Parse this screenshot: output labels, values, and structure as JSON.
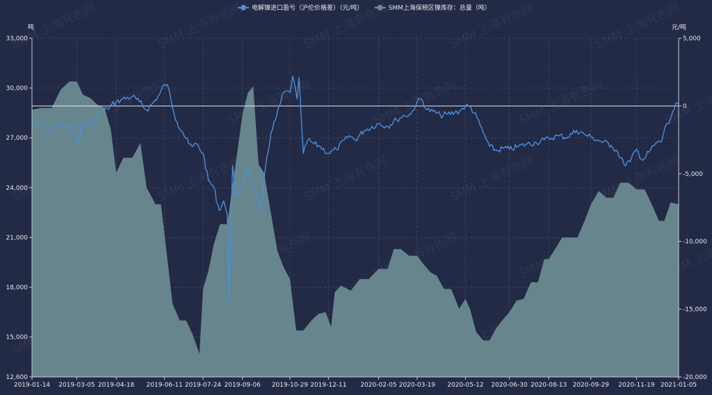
{
  "chart_data": {
    "type": "line+area",
    "legend": {
      "placement": "top-center",
      "items": [
        {
          "name": "电解镍进口盈亏（沪伦价格差）（元/吨）",
          "color": "#4a8fe0",
          "series": "import_pnl"
        },
        {
          "name": "SMM上海保税区镍库存：总量（吨）",
          "color": "#6e8d93",
          "series": "inventory"
        }
      ]
    },
    "left_axis": {
      "unit": "吨",
      "min": 12600,
      "max": 33000,
      "ticks": [
        12600,
        15000,
        18000,
        21000,
        24000,
        27000,
        30000,
        33000
      ]
    },
    "right_axis": {
      "unit": "元/吨",
      "min": -20000,
      "max": 5000,
      "ticks": [
        -20000,
        -15000,
        -10000,
        -5000,
        0,
        5000
      ]
    },
    "x_axis": {
      "start": "2019-01-14",
      "end": "2021-01-05",
      "tick_labels": [
        "2019-01-14",
        "2019-03-05",
        "2019-04-18",
        "2019-06-11",
        "2019-07-24",
        "2019-09-06",
        "2019-10-29",
        "2019-12-11",
        "2020-02-05",
        "2020-03-19",
        "2020-05-12",
        "2020-06-30",
        "2020-08-13",
        "2020-09-29",
        "2020-11-19",
        "2021-01-05"
      ]
    },
    "grid": true,
    "zero_line": true,
    "watermark": "SMM 上海有色网",
    "series": {
      "import_pnl": {
        "axis": "right",
        "color": "#4a8fe0",
        "points": [
          [
            "2019-01-14",
            -1500
          ],
          [
            "2019-01-21",
            -1200
          ],
          [
            "2019-02-01",
            -1800
          ],
          [
            "2019-02-11",
            -1400
          ],
          [
            "2019-02-20",
            -1600
          ],
          [
            "2019-03-01",
            -1500
          ],
          [
            "2019-03-05",
            -2700
          ],
          [
            "2019-03-13",
            -1200
          ],
          [
            "2019-03-21",
            -1400
          ],
          [
            "2019-03-29",
            -600
          ],
          [
            "2019-04-08",
            -200
          ],
          [
            "2019-04-18",
            300
          ],
          [
            "2019-04-25",
            500
          ],
          [
            "2019-05-06",
            700
          ],
          [
            "2019-05-14",
            300
          ],
          [
            "2019-05-22",
            -300
          ],
          [
            "2019-05-30",
            300
          ],
          [
            "2019-06-05",
            800
          ],
          [
            "2019-06-11",
            1600
          ],
          [
            "2019-06-14",
            1600
          ],
          [
            "2019-06-19",
            200
          ],
          [
            "2019-06-25",
            -1200
          ],
          [
            "2019-07-01",
            -1900
          ],
          [
            "2019-07-08",
            -2800
          ],
          [
            "2019-07-12",
            -3000
          ],
          [
            "2019-07-17",
            -2800
          ],
          [
            "2019-07-24",
            -3500
          ],
          [
            "2019-07-30",
            -5500
          ],
          [
            "2019-08-05",
            -6000
          ],
          [
            "2019-08-11",
            -7700
          ],
          [
            "2019-08-16",
            -7000
          ],
          [
            "2019-08-20",
            -8000
          ],
          [
            "2019-08-22",
            -14400
          ],
          [
            "2019-08-26",
            -4400
          ],
          [
            "2019-08-30",
            -6500
          ],
          [
            "2019-09-06",
            -6000
          ],
          [
            "2019-09-12",
            -4500
          ],
          [
            "2019-09-18",
            -6000
          ],
          [
            "2019-09-23",
            -7000
          ],
          [
            "2019-09-27",
            -7800
          ],
          [
            "2019-10-01",
            -4900
          ],
          [
            "2019-10-08",
            -1900
          ],
          [
            "2019-10-14",
            -800
          ],
          [
            "2019-10-22",
            1000
          ],
          [
            "2019-10-29",
            1000
          ],
          [
            "2019-11-01",
            2200
          ],
          [
            "2019-11-06",
            500
          ],
          [
            "2019-11-08",
            2100
          ],
          [
            "2019-11-13",
            -3500
          ],
          [
            "2019-11-18",
            -2500
          ],
          [
            "2019-11-25",
            -2800
          ],
          [
            "2019-12-02",
            -3000
          ],
          [
            "2019-12-11",
            -3500
          ],
          [
            "2019-12-20",
            -3200
          ],
          [
            "2020-01-03",
            -2200
          ],
          [
            "2020-01-10",
            -2500
          ],
          [
            "2020-01-20",
            -1800
          ],
          [
            "2020-02-05",
            -1300
          ],
          [
            "2020-02-15",
            -1500
          ],
          [
            "2020-02-25",
            -1000
          ],
          [
            "2020-03-05",
            -700
          ],
          [
            "2020-03-12",
            -600
          ],
          [
            "2020-03-19",
            300
          ],
          [
            "2020-03-24",
            500
          ],
          [
            "2020-03-30",
            -300
          ],
          [
            "2020-04-06",
            -400
          ],
          [
            "2020-04-14",
            -700
          ],
          [
            "2020-04-22",
            -600
          ],
          [
            "2020-04-30",
            -500
          ],
          [
            "2020-05-07",
            -300
          ],
          [
            "2020-05-12",
            0
          ],
          [
            "2020-05-18",
            -100
          ],
          [
            "2020-05-25",
            -900
          ],
          [
            "2020-06-01",
            -2000
          ],
          [
            "2020-06-08",
            -3000
          ],
          [
            "2020-06-16",
            -3300
          ],
          [
            "2020-06-24",
            -3100
          ],
          [
            "2020-06-30",
            -3200
          ],
          [
            "2020-07-10",
            -3000
          ],
          [
            "2020-07-20",
            -2800
          ],
          [
            "2020-07-30",
            -2700
          ],
          [
            "2020-08-08",
            -2500
          ],
          [
            "2020-08-13",
            -2400
          ],
          [
            "2020-08-24",
            -2200
          ],
          [
            "2020-09-03",
            -2300
          ],
          [
            "2020-09-13",
            -1800
          ],
          [
            "2020-09-22",
            -2100
          ],
          [
            "2020-09-29",
            -2300
          ],
          [
            "2020-10-10",
            -2600
          ],
          [
            "2020-10-22",
            -2900
          ],
          [
            "2020-10-29",
            -3400
          ],
          [
            "2020-11-05",
            -4300
          ],
          [
            "2020-11-12",
            -4100
          ],
          [
            "2020-11-19",
            -3200
          ],
          [
            "2020-11-26",
            -4000
          ],
          [
            "2020-12-03",
            -3400
          ],
          [
            "2020-12-10",
            -2800
          ],
          [
            "2020-12-17",
            -2600
          ],
          [
            "2020-12-21",
            -1500
          ],
          [
            "2020-12-25",
            -1300
          ],
          [
            "2020-12-29",
            -500
          ],
          [
            "2021-01-02",
            200
          ],
          [
            "2021-01-05",
            200
          ]
        ]
      },
      "inventory": {
        "axis": "left",
        "color": "#6e8d93",
        "points": [
          [
            "2019-01-14",
            28700
          ],
          [
            "2019-01-24",
            28800
          ],
          [
            "2019-02-05",
            28800
          ],
          [
            "2019-02-15",
            29900
          ],
          [
            "2019-02-25",
            30400
          ],
          [
            "2019-03-05",
            30400
          ],
          [
            "2019-03-12",
            29600
          ],
          [
            "2019-03-20",
            29400
          ],
          [
            "2019-03-28",
            29000
          ],
          [
            "2019-04-05",
            28800
          ],
          [
            "2019-04-12",
            27500
          ],
          [
            "2019-04-18",
            24900
          ],
          [
            "2019-04-26",
            25800
          ],
          [
            "2019-05-06",
            25800
          ],
          [
            "2019-05-15",
            26700
          ],
          [
            "2019-05-22",
            24000
          ],
          [
            "2019-06-01",
            23000
          ],
          [
            "2019-06-07",
            23000
          ],
          [
            "2019-06-14",
            19800
          ],
          [
            "2019-06-20",
            17000
          ],
          [
            "2019-06-28",
            16000
          ],
          [
            "2019-07-05",
            16000
          ],
          [
            "2019-07-12",
            15200
          ],
          [
            "2019-07-20",
            14000
          ],
          [
            "2019-07-24",
            17900
          ],
          [
            "2019-07-30",
            19000
          ],
          [
            "2019-08-05",
            20600
          ],
          [
            "2019-08-12",
            21800
          ],
          [
            "2019-08-20",
            21800
          ],
          [
            "2019-08-28",
            24900
          ],
          [
            "2019-09-06",
            28400
          ],
          [
            "2019-09-12",
            29700
          ],
          [
            "2019-09-18",
            30100
          ],
          [
            "2019-09-24",
            25400
          ],
          [
            "2019-09-30",
            24900
          ],
          [
            "2019-10-08",
            22400
          ],
          [
            "2019-10-15",
            20200
          ],
          [
            "2019-10-22",
            19200
          ],
          [
            "2019-10-29",
            18500
          ],
          [
            "2019-11-05",
            15400
          ],
          [
            "2019-11-13",
            15400
          ],
          [
            "2019-11-22",
            16000
          ],
          [
            "2019-11-30",
            16400
          ],
          [
            "2019-12-08",
            16500
          ],
          [
            "2019-12-14",
            15600
          ],
          [
            "2019-12-18",
            17700
          ],
          [
            "2019-12-25",
            18100
          ],
          [
            "2020-01-05",
            17800
          ],
          [
            "2020-01-15",
            18500
          ],
          [
            "2020-01-25",
            18500
          ],
          [
            "2020-02-05",
            19100
          ],
          [
            "2020-02-15",
            19100
          ],
          [
            "2020-02-22",
            20300
          ],
          [
            "2020-03-01",
            20300
          ],
          [
            "2020-03-10",
            19900
          ],
          [
            "2020-03-19",
            19900
          ],
          [
            "2020-03-26",
            19400
          ],
          [
            "2020-04-03",
            18900
          ],
          [
            "2020-04-10",
            18700
          ],
          [
            "2020-04-18",
            17900
          ],
          [
            "2020-04-26",
            17900
          ],
          [
            "2020-05-05",
            16700
          ],
          [
            "2020-05-12",
            17300
          ],
          [
            "2020-05-17",
            16700
          ],
          [
            "2020-05-24",
            15300
          ],
          [
            "2020-06-01",
            14800
          ],
          [
            "2020-06-08",
            14800
          ],
          [
            "2020-06-15",
            15500
          ],
          [
            "2020-06-22",
            16000
          ],
          [
            "2020-06-30",
            16500
          ],
          [
            "2020-07-08",
            17200
          ],
          [
            "2020-07-16",
            17300
          ],
          [
            "2020-07-24",
            18300
          ],
          [
            "2020-08-01",
            18300
          ],
          [
            "2020-08-08",
            19700
          ],
          [
            "2020-08-13",
            19700
          ],
          [
            "2020-08-20",
            20300
          ],
          [
            "2020-08-28",
            21000
          ],
          [
            "2020-09-06",
            21000
          ],
          [
            "2020-09-14",
            21000
          ],
          [
            "2020-09-22",
            22000
          ],
          [
            "2020-09-29",
            23000
          ],
          [
            "2020-10-08",
            23800
          ],
          [
            "2020-10-16",
            23400
          ],
          [
            "2020-10-24",
            23400
          ],
          [
            "2020-11-01",
            24300
          ],
          [
            "2020-11-10",
            24300
          ],
          [
            "2020-11-19",
            23900
          ],
          [
            "2020-11-28",
            23900
          ],
          [
            "2020-12-06",
            23000
          ],
          [
            "2020-12-14",
            22000
          ],
          [
            "2020-12-20",
            22000
          ],
          [
            "2020-12-27",
            23100
          ],
          [
            "2021-01-05",
            23000
          ]
        ]
      }
    }
  }
}
